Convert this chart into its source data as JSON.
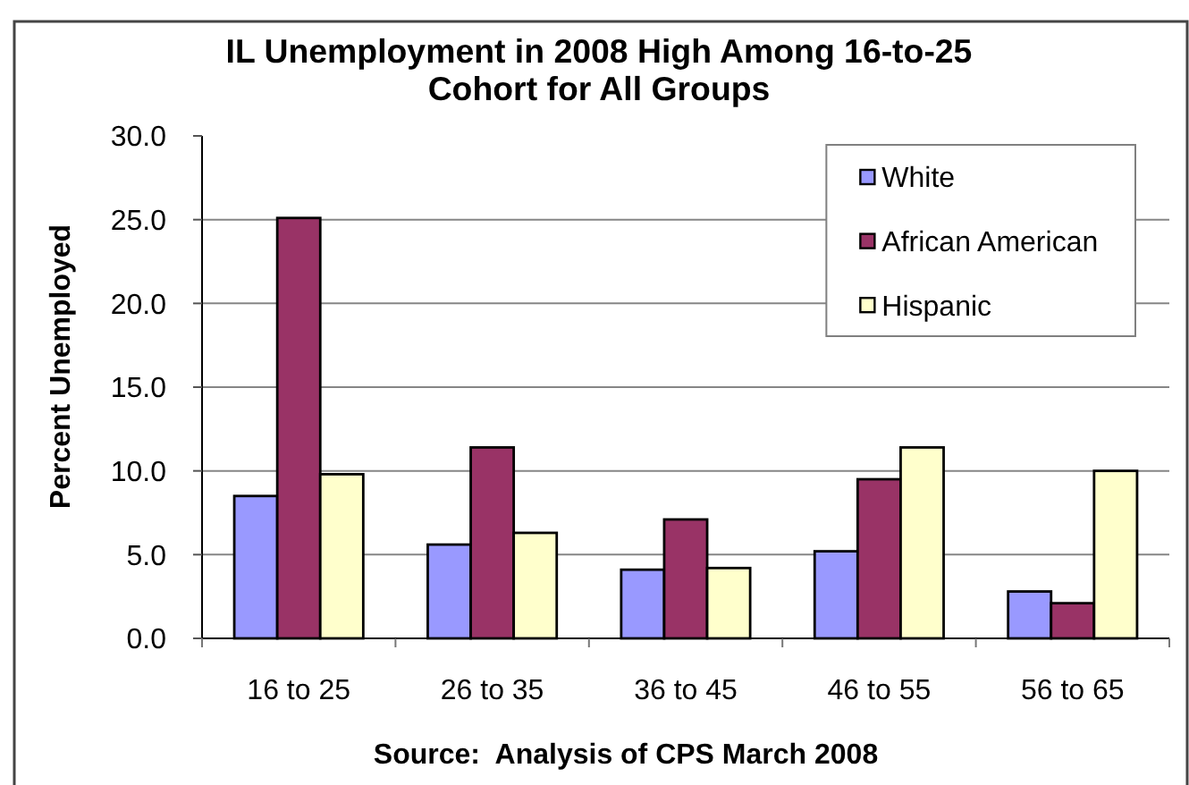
{
  "chart_data": {
    "type": "bar",
    "title": "IL Unemployment in 2008 High Among 16-to-25 Cohort for All Groups",
    "ylabel": "Percent Unemployed",
    "annotations": [
      "Source:  Analysis of CPS March 2008"
    ],
    "categories": [
      "16 to 25",
      "26 to 35",
      "36 to 45",
      "46 to 55",
      "56 to 65"
    ],
    "series": [
      {
        "name": "White",
        "color": "#9999ff",
        "values": [
          8.5,
          5.6,
          4.1,
          5.2,
          2.8
        ]
      },
      {
        "name": "African American",
        "color": "#993366",
        "values": [
          25.1,
          11.4,
          7.1,
          9.5,
          2.1
        ]
      },
      {
        "name": "Hispanic",
        "color": "#ffffcc",
        "values": [
          9.8,
          6.3,
          4.2,
          11.4,
          10.0
        ]
      }
    ],
    "ylim": [
      0,
      30
    ],
    "yticks": [
      {
        "value": 0,
        "label": "0.0"
      },
      {
        "value": 5,
        "label": "5.0"
      },
      {
        "value": 10,
        "label": "10.0"
      },
      {
        "value": 15,
        "label": "15.0"
      },
      {
        "value": 20,
        "label": "20.0"
      },
      {
        "value": 25,
        "label": "25.0"
      },
      {
        "value": 30,
        "label": "30.0"
      }
    ],
    "grid": "y",
    "legend": "top right"
  }
}
